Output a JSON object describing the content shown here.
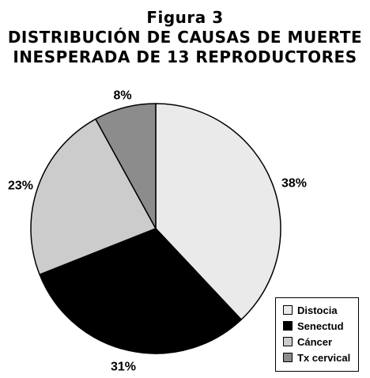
{
  "header": {
    "title_lines": [
      "Figura 3",
      "DISTRIBUCIÓN DE CAUSAS DE MUERTE",
      "INESPERADA DE 13 REPRODUCTORES"
    ]
  },
  "chart_data": {
    "type": "pie",
    "title": "Figura 3 DISTRIBUCIÓN DE CAUSAS DE MUERTE INESPERADA DE 13 REPRODUCTORES",
    "categories": [
      "Distocia",
      "Senectud",
      "Cáncer",
      "Tx cervical"
    ],
    "values": [
      38,
      31,
      23,
      8
    ],
    "labels": [
      "38%",
      "31%",
      "23%",
      "8%"
    ],
    "colors": [
      "#eaeaea",
      "#000000",
      "#cccccc",
      "#8c8c8c"
    ],
    "start_angle": "12 o'clock, clockwise",
    "legend_position": "bottom-right"
  }
}
